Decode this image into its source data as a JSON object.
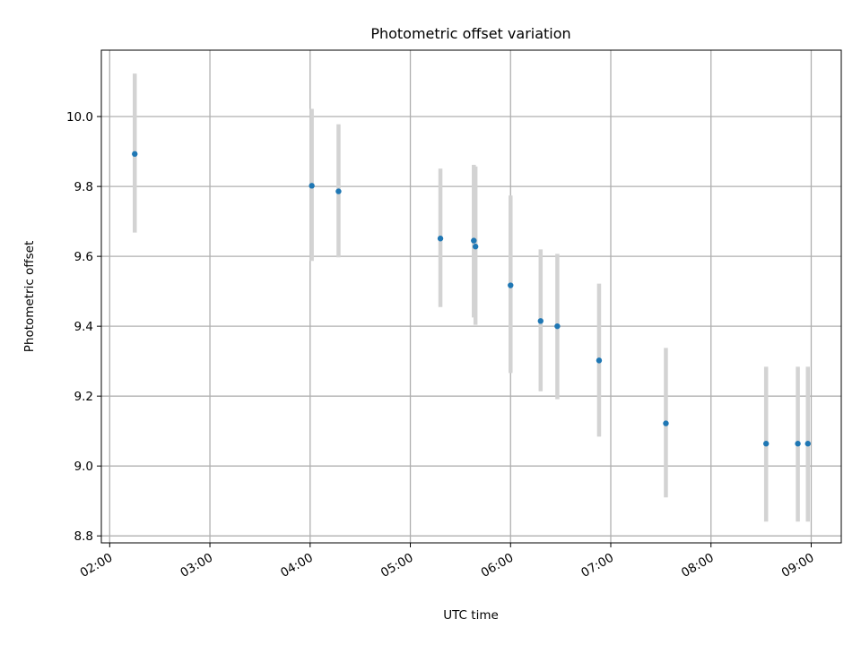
{
  "chart_data": {
    "type": "scatter",
    "title": "Photometric offset variation",
    "xlabel": "UTC time",
    "ylabel": "Photometric offset",
    "x_axis_type": "time",
    "xlim": [
      "01:55",
      "09:18"
    ],
    "ylim": [
      8.78,
      10.19
    ],
    "x_ticks": [
      "02:00",
      "03:00",
      "04:00",
      "05:00",
      "06:00",
      "07:00",
      "08:00",
      "09:00"
    ],
    "y_ticks": [
      "8.8",
      "9.0",
      "9.2",
      "9.4",
      "9.6",
      "9.8",
      "10.0"
    ],
    "grid": true,
    "legend": "none",
    "colors": {
      "point": "#1f77b4",
      "error_bar": "#d3d3d3",
      "grid": "#b0b0b0"
    },
    "points": [
      {
        "x": "02:15",
        "y": 9.893,
        "y_low": 9.668,
        "y_high": 10.123
      },
      {
        "x": "04:01",
        "y": 9.802,
        "y_low": 9.587,
        "y_high": 10.022
      },
      {
        "x": "04:17",
        "y": 9.786,
        "y_low": 9.597,
        "y_high": 9.978
      },
      {
        "x": "05:18",
        "y": 9.651,
        "y_low": 9.455,
        "y_high": 9.851
      },
      {
        "x": "05:38",
        "y": 9.645,
        "y_low": 9.425,
        "y_high": 9.862
      },
      {
        "x": "05:39",
        "y": 9.628,
        "y_low": 9.404,
        "y_high": 9.857
      },
      {
        "x": "06:00",
        "y": 9.517,
        "y_low": 9.266,
        "y_high": 9.774
      },
      {
        "x": "06:18",
        "y": 9.415,
        "y_low": 9.214,
        "y_high": 9.62
      },
      {
        "x": "06:28",
        "y": 9.4,
        "y_low": 9.191,
        "y_high": 9.607
      },
      {
        "x": "06:53",
        "y": 9.302,
        "y_low": 9.084,
        "y_high": 9.522
      },
      {
        "x": "07:33",
        "y": 9.122,
        "y_low": 8.91,
        "y_high": 9.338
      },
      {
        "x": "08:33",
        "y": 9.064,
        "y_low": 8.841,
        "y_high": 9.284
      },
      {
        "x": "08:52",
        "y": 9.064,
        "y_low": 8.841,
        "y_high": 9.284
      },
      {
        "x": "08:58",
        "y": 9.064,
        "y_low": 8.841,
        "y_high": 9.284
      }
    ]
  }
}
